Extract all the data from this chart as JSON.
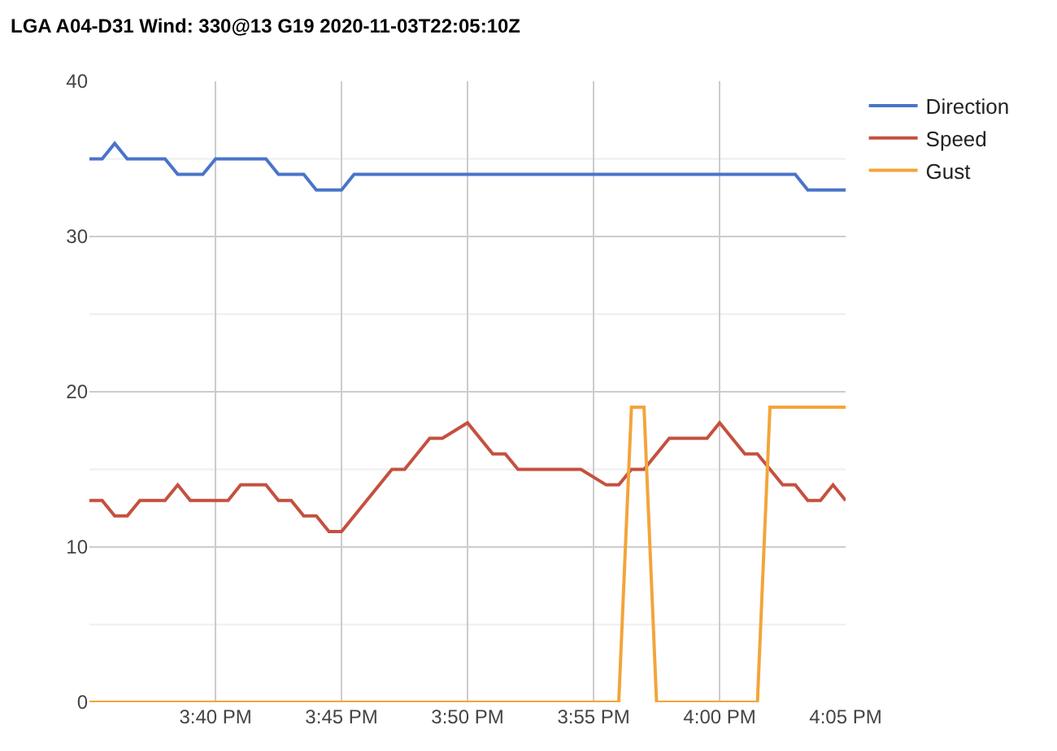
{
  "chart_data": {
    "type": "line",
    "title": "LGA A04-D31 Wind: 330@13 G19 2020-11-03T22:05:10Z",
    "series": [
      {
        "name": "Direction",
        "color": "#4a74c9",
        "x": [
          15.5833,
          15.5917,
          15.6,
          15.6083,
          15.6333,
          15.6417,
          15.6583,
          15.6667,
          15.7,
          15.7083,
          15.725,
          15.7333,
          15.75,
          15.7583,
          16.05,
          16.0583,
          16.0833
        ],
        "values": [
          35,
          35,
          36,
          35,
          35,
          34,
          34,
          35,
          35,
          34,
          34,
          33,
          33,
          34,
          34,
          33,
          33
        ]
      },
      {
        "name": "Speed",
        "color": "#c5503f",
        "x": [
          15.5833,
          15.5917,
          15.6,
          15.6083,
          15.6167,
          15.6333,
          15.6417,
          15.65,
          15.675,
          15.6833,
          15.7,
          15.7083,
          15.7167,
          15.725,
          15.7333,
          15.7417,
          15.75,
          15.7833,
          15.7917,
          15.8083,
          15.8167,
          15.8333,
          15.85,
          15.8583,
          15.8667,
          15.9083,
          15.925,
          15.9333,
          15.9417,
          15.95,
          15.9667,
          15.9917,
          16.0,
          16.0167,
          16.025,
          16.0417,
          16.05,
          16.0583,
          16.0667,
          16.075,
          16.0833
        ],
        "values": [
          13,
          13,
          12,
          12,
          13,
          13,
          14,
          13,
          13,
          14,
          14,
          13,
          13,
          12,
          12,
          11,
          11,
          15,
          15,
          17,
          17,
          18,
          16,
          16,
          15,
          15,
          14,
          14,
          15,
          15,
          17,
          17,
          18,
          16,
          16,
          14,
          14,
          13,
          13,
          14,
          13
        ]
      },
      {
        "name": "Gust",
        "color": "#f2a53a",
        "x": [
          15.5833,
          15.9333,
          15.9417,
          15.95,
          15.9583,
          16.025,
          16.0333,
          16.0833
        ],
        "values": [
          0,
          0,
          19,
          19,
          0,
          0,
          19,
          19
        ]
      }
    ],
    "xlim": [
      15.5833,
      16.0833
    ],
    "xticks": [
      {
        "value": 15.6667,
        "label": "3:40 PM"
      },
      {
        "value": 15.75,
        "label": "3:45 PM"
      },
      {
        "value": 15.8333,
        "label": "3:50 PM"
      },
      {
        "value": 15.9167,
        "label": "3:55 PM"
      },
      {
        "value": 16.0,
        "label": "4:00 PM"
      },
      {
        "value": 16.0833,
        "label": "4:05 PM"
      }
    ],
    "ylim": [
      0,
      40
    ],
    "yticks": [
      0,
      10,
      20,
      30,
      40
    ],
    "grid": true,
    "legend": "top right",
    "marker": "none",
    "line_style": "solid"
  }
}
